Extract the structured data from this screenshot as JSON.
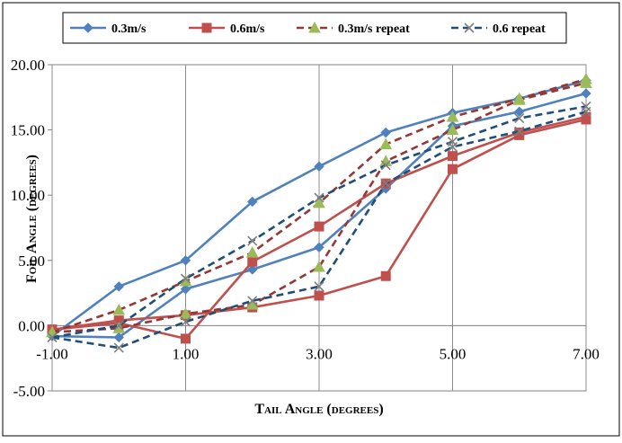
{
  "chart_data": {
    "type": "line",
    "title": "",
    "xlabel": "Tail Angle (degrees)",
    "ylabel": "Foil Angle (degrees)",
    "xlim": [
      -1,
      7
    ],
    "ylim": [
      -5,
      20
    ],
    "x_tick_values": [
      -1,
      1,
      3,
      5,
      7
    ],
    "x_tick_labels": [
      "-1.00",
      "1.00",
      "3.00",
      "5.00",
      "7.00"
    ],
    "y_tick_values": [
      -5,
      0,
      5,
      10,
      15,
      20
    ],
    "y_tick_labels": [
      "-5.00",
      "0.00",
      "5.00",
      "10.00",
      "15.00",
      "20.00"
    ],
    "grid": "vertical",
    "legend_position": "top",
    "series": [
      {
        "name": "0.3m/s",
        "color": "#4F81BD",
        "dash": "solid",
        "marker": "diamond",
        "loops": [
          {
            "x": [
              -1,
              0,
              1,
              2,
              3,
              4,
              5,
              6,
              7
            ],
            "y": [
              -0.8,
              3.0,
              5.0,
              9.5,
              12.2,
              14.8,
              16.3,
              17.4,
              18.8
            ]
          },
          {
            "x": [
              -1,
              0,
              1,
              2,
              3,
              4,
              5,
              6,
              7
            ],
            "y": [
              -0.8,
              -0.9,
              2.8,
              4.3,
              6.0,
              10.5,
              15.3,
              16.4,
              17.8
            ]
          }
        ]
      },
      {
        "name": "0.6m/s",
        "color": "#C0504D",
        "dash": "solid",
        "marker": "square",
        "loops": [
          {
            "x": [
              -1,
              0,
              1,
              2,
              3,
              4,
              5,
              6,
              7
            ],
            "y": [
              -0.3,
              0.4,
              0.8,
              1.4,
              2.3,
              3.8,
              12.0,
              14.6,
              15.8
            ]
          },
          {
            "x": [
              -1,
              0,
              1,
              2,
              3,
              4,
              5,
              6,
              7
            ],
            "y": [
              -0.3,
              0.2,
              -1.0,
              4.9,
              7.6,
              10.9,
              13.0,
              14.8,
              16.0
            ]
          }
        ]
      },
      {
        "name": "0.3m/s repeat",
        "color": "#9BBB59",
        "line_color": "#953735",
        "dash": "dashed",
        "marker": "triangle",
        "loops": [
          {
            "x": [
              -1,
              0,
              1,
              2,
              3,
              4,
              5,
              6,
              7
            ],
            "y": [
              -0.5,
              1.2,
              3.4,
              5.6,
              9.4,
              13.9,
              16.0,
              17.4,
              18.9
            ]
          },
          {
            "x": [
              -1,
              0,
              1,
              2,
              3,
              4,
              5,
              6,
              7
            ],
            "y": [
              -0.5,
              -0.2,
              0.9,
              1.6,
              4.5,
              12.6,
              15.0,
              17.3,
              18.6
            ]
          }
        ]
      },
      {
        "name": "0.6 repeat",
        "color": "#7F7F7F",
        "line_color": "#1F4E79",
        "dash": "dashed",
        "marker": "x",
        "loops": [
          {
            "x": [
              -1,
              0,
              1,
              2,
              3,
              4,
              5,
              6,
              7
            ],
            "y": [
              -0.9,
              0.0,
              3.6,
              6.5,
              9.8,
              12.3,
              14.1,
              15.9,
              16.8
            ]
          },
          {
            "x": [
              -1,
              0,
              1,
              2,
              3,
              4,
              5,
              6,
              7
            ],
            "y": [
              -0.9,
              -1.7,
              0.3,
              1.9,
              3.0,
              10.9,
              13.7,
              14.9,
              16.4
            ]
          }
        ]
      }
    ]
  }
}
